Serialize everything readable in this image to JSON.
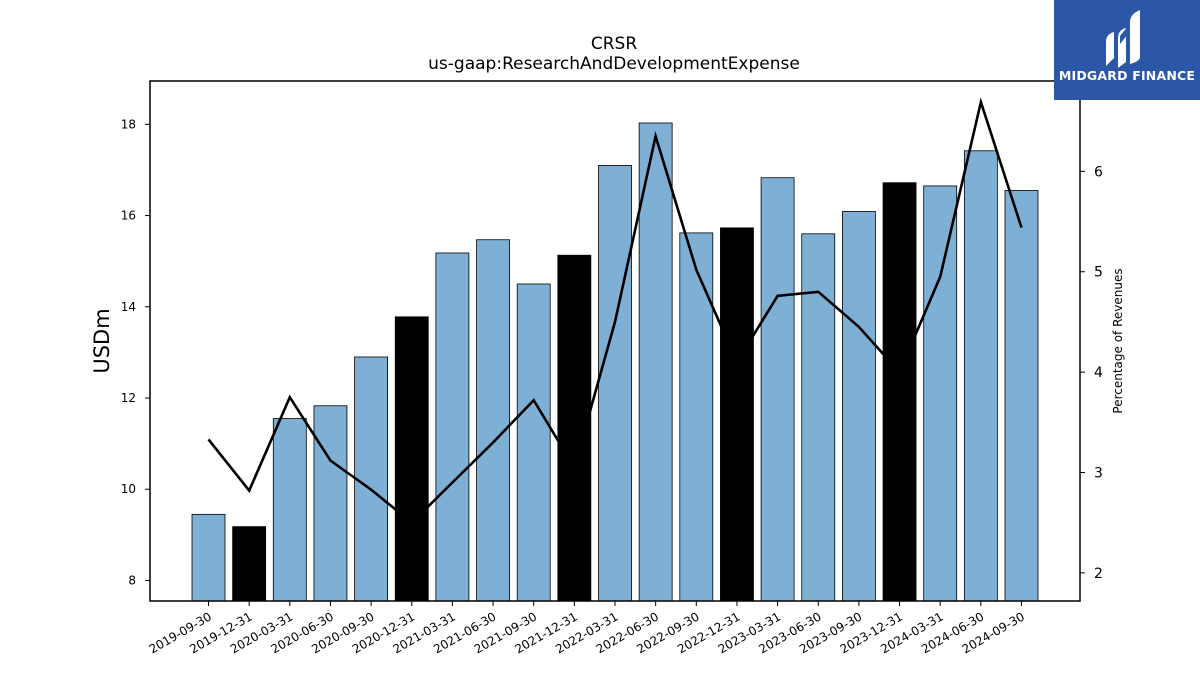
{
  "chart_data": {
    "type": "bar",
    "title": "CRSR",
    "subtitle": "us-gaap:ResearchAndDevelopmentExpense",
    "ylabel": "USDm",
    "y2label": "Percentage of Revenues",
    "ylim": [
      7.55,
      18.95
    ],
    "y2lim": [
      1.72,
      6.9
    ],
    "yticks": [
      8,
      10,
      12,
      14,
      16,
      18
    ],
    "y2ticks": [
      2,
      3,
      4,
      5,
      6
    ],
    "categories": [
      "2019-09-30",
      "2019-12-31",
      "2020-03-31",
      "2020-06-30",
      "2020-09-30",
      "2020-12-31",
      "2021-03-31",
      "2021-06-30",
      "2021-09-30",
      "2021-12-31",
      "2022-03-31",
      "2022-06-30",
      "2022-09-30",
      "2022-12-31",
      "2023-03-31",
      "2023-06-30",
      "2023-09-30",
      "2023-12-31",
      "2024-03-31",
      "2024-06-30",
      "2024-09-30"
    ],
    "series": [
      {
        "type": "bar",
        "values": [
          9.45,
          9.18,
          11.55,
          11.83,
          12.9,
          13.78,
          15.18,
          15.47,
          14.5,
          15.13,
          17.1,
          18.03,
          15.62,
          15.73,
          16.83,
          15.6,
          16.09,
          16.72,
          16.65,
          17.42,
          16.55
        ],
        "is_q4": [
          false,
          true,
          false,
          false,
          false,
          true,
          false,
          false,
          false,
          true,
          false,
          false,
          false,
          true,
          false,
          false,
          false,
          true,
          false,
          false,
          false
        ]
      },
      {
        "type": "line",
        "axis": "right",
        "values": [
          3.33,
          2.82,
          3.75,
          3.12,
          2.83,
          2.5,
          2.9,
          3.3,
          3.72,
          3.05,
          4.5,
          6.35,
          5.02,
          4.1,
          4.76,
          4.8,
          4.45,
          4.0,
          4.95,
          6.69,
          5.44
        ]
      }
    ],
    "colors": {
      "bar": "#7eb0d5",
      "bar_q4": "#000000",
      "line": "#000000"
    }
  },
  "logo": {
    "text": "MIDGARD FINANCE",
    "background": "#2b57a6"
  }
}
